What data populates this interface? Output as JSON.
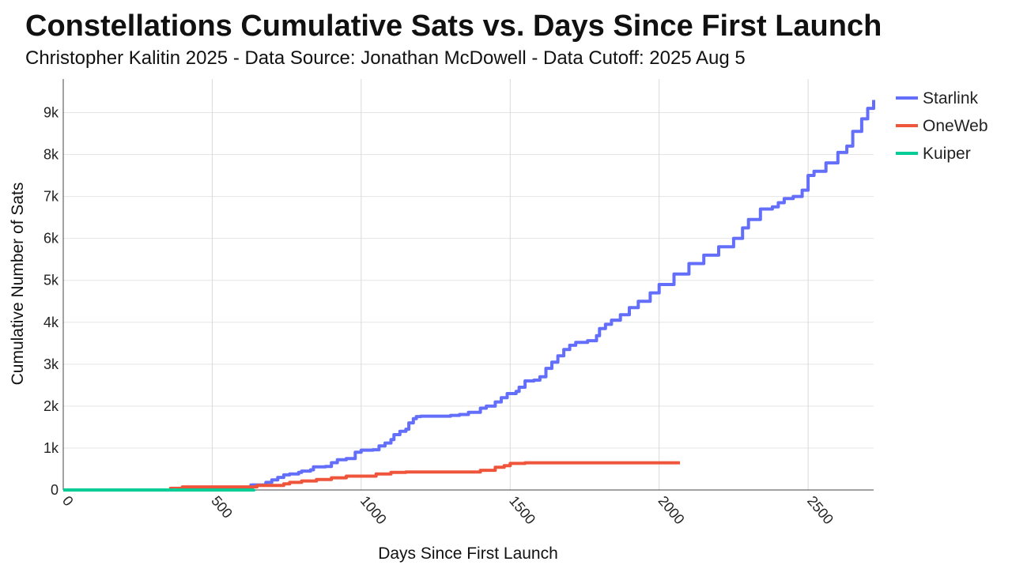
{
  "chart_data": {
    "type": "line",
    "title": "Constellations Cumulative Sats vs. Days Since First Launch",
    "subtitle": "Christopher Kalitin 2025 - Data Source: Jonathan McDowell - Data Cutoff: 2025 Aug 5",
    "xlabel": "Days Since First Launch",
    "ylabel": "Cumulative Number of Sats",
    "xlim": [
      0,
      2720
    ],
    "ylim": [
      0,
      9800
    ],
    "xticks": [
      0,
      500,
      1000,
      1500,
      2000,
      2500
    ],
    "xtick_labels": [
      "0",
      "500",
      "1000",
      "1500",
      "2000",
      "2500"
    ],
    "yticks": [
      0,
      1000,
      2000,
      3000,
      4000,
      5000,
      6000,
      7000,
      8000,
      9000
    ],
    "ytick_labels": [
      "0",
      "1k",
      "2k",
      "3k",
      "4k",
      "5k",
      "6k",
      "7k",
      "8k",
      "9k"
    ],
    "grid": true,
    "legend_position": "top-right",
    "series": [
      {
        "name": "Starlink",
        "color": "#636efa",
        "x": [
          0,
          620,
          630,
          660,
          680,
          700,
          720,
          740,
          760,
          790,
          800,
          830,
          840,
          880,
          900,
          920,
          950,
          980,
          1000,
          1040,
          1060,
          1080,
          1100,
          1110,
          1130,
          1150,
          1160,
          1175,
          1185,
          1200,
          1240,
          1300,
          1330,
          1360,
          1400,
          1420,
          1450,
          1470,
          1490,
          1520,
          1530,
          1550,
          1580,
          1600,
          1620,
          1640,
          1660,
          1680,
          1700,
          1720,
          1760,
          1790,
          1800,
          1820,
          1840,
          1870,
          1900,
          1930,
          1970,
          2000,
          2050,
          2100,
          2150,
          2200,
          2250,
          2280,
          2300,
          2340,
          2380,
          2400,
          2420,
          2450,
          2480,
          2500,
          2520,
          2560,
          2600,
          2630,
          2650,
          2680,
          2700,
          2720
        ],
        "y": [
          0,
          0,
          120,
          120,
          180,
          240,
          300,
          360,
          380,
          420,
          450,
          480,
          550,
          560,
          650,
          720,
          750,
          900,
          950,
          960,
          1050,
          1120,
          1200,
          1320,
          1400,
          1450,
          1600,
          1700,
          1750,
          1760,
          1760,
          1780,
          1800,
          1850,
          1950,
          2000,
          2100,
          2200,
          2300,
          2350,
          2450,
          2600,
          2620,
          2700,
          2900,
          3050,
          3200,
          3350,
          3450,
          3520,
          3560,
          3680,
          3850,
          3950,
          4050,
          4180,
          4350,
          4500,
          4700,
          4900,
          5150,
          5400,
          5600,
          5800,
          6000,
          6250,
          6450,
          6700,
          6750,
          6850,
          6950,
          7000,
          7150,
          7500,
          7600,
          7800,
          8050,
          8200,
          8550,
          8850,
          9100,
          9300
        ]
      },
      {
        "name": "OneWeb",
        "color": "#ef553b",
        "x": [
          0,
          350,
          360,
          400,
          600,
          650,
          700,
          740,
          760,
          800,
          850,
          900,
          950,
          1050,
          1100,
          1150,
          1350,
          1400,
          1450,
          1480,
          1500,
          1550,
          2070
        ],
        "y": [
          0,
          0,
          40,
          74,
          74,
          110,
          110,
          146,
          180,
          214,
          250,
          290,
          330,
          380,
          418,
          428,
          428,
          470,
          540,
          580,
          634,
          648,
          648
        ]
      },
      {
        "name": "Kuiper",
        "color": "#00cc96",
        "x": [
          0,
          630,
          640
        ],
        "y": [
          0,
          0,
          20
        ]
      }
    ]
  }
}
